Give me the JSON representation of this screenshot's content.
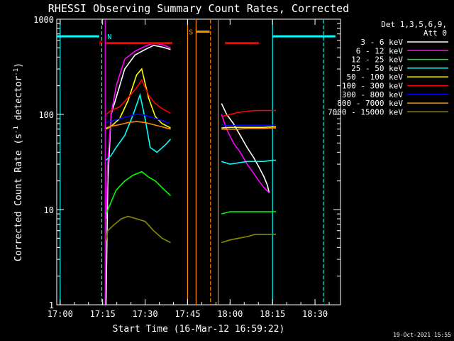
{
  "chart_data": {
    "type": "line",
    "title": "RHESSI Observing Summary Count Rates, Corrected",
    "xlabel": "Start Time (16-Mar-12 16:59:22)",
    "ylabel": "Corrected Count Rate (s",
    "ylabel_sup1": "-1",
    "ylabel_mid": " detector",
    "ylabel_sup2": "-1",
    "ylabel_end": ")",
    "yscale": "log",
    "ylim": [
      1,
      1000
    ],
    "xlim_minutes": [
      16.98,
      18.65
    ],
    "x_ticks": [
      {
        "label": "17:00",
        "min": 17.0
      },
      {
        "label": "17:15",
        "min": 17.25
      },
      {
        "label": "17:30",
        "min": 17.5
      },
      {
        "label": "17:45",
        "min": 17.75
      },
      {
        "label": "18:00",
        "min": 18.0
      },
      {
        "label": "18:15",
        "min": 18.25
      },
      {
        "label": "18:30",
        "min": 18.5
      }
    ],
    "y_ticks": [
      {
        "label": "1000",
        "value": 1000
      },
      {
        "label": "100",
        "value": 100
      },
      {
        "label": "10",
        "value": 10
      },
      {
        "label": "1",
        "value": 1
      }
    ],
    "legend_header": [
      "Det 1,3,5,6,9,",
      "Att 0"
    ],
    "series": [
      {
        "name": "3 - 6 keV",
        "color": "#ffffff",
        "segments": [
          [
            [
              17.27,
              1
            ],
            [
              17.28,
              18
            ],
            [
              17.3,
              100
            ],
            [
              17.33,
              150
            ],
            [
              17.38,
              300
            ],
            [
              17.44,
              420
            ],
            [
              17.5,
              480
            ],
            [
              17.55,
              530
            ],
            [
              17.6,
              510
            ],
            [
              17.65,
              480
            ]
          ],
          [
            [
              17.95,
              130
            ],
            [
              17.98,
              100
            ],
            [
              18.02,
              80
            ],
            [
              18.06,
              60
            ],
            [
              18.1,
              45
            ],
            [
              18.14,
              35
            ],
            [
              18.17,
              28
            ],
            [
              18.2,
              22
            ],
            [
              18.22,
              18
            ],
            [
              18.23,
              15
            ]
          ]
        ]
      },
      {
        "name": "6 - 12 keV",
        "color": "#ff00ff",
        "segments": [
          [
            [
              17.27,
              8
            ],
            [
              17.28,
              30
            ],
            [
              17.3,
              100
            ],
            [
              17.33,
              200
            ],
            [
              17.38,
              380
            ],
            [
              17.44,
              460
            ],
            [
              17.5,
              520
            ],
            [
              17.55,
              560
            ],
            [
              17.6,
              540
            ],
            [
              17.65,
              500
            ]
          ],
          [
            [
              17.95,
              100
            ],
            [
              17.98,
              70
            ],
            [
              18.02,
              50
            ],
            [
              18.06,
              40
            ],
            [
              18.1,
              30
            ],
            [
              18.14,
              24
            ],
            [
              18.17,
              20
            ],
            [
              18.2,
              17
            ],
            [
              18.23,
              15
            ]
          ]
        ]
      },
      {
        "name": "12 - 25 keV",
        "color": "#00ff00",
        "segments": [
          [
            [
              17.27,
              9
            ],
            [
              17.3,
              12
            ],
            [
              17.33,
              16
            ],
            [
              17.38,
              20
            ],
            [
              17.43,
              23
            ],
            [
              17.48,
              25
            ],
            [
              17.52,
              22
            ],
            [
              17.56,
              20
            ],
            [
              17.6,
              17
            ],
            [
              17.65,
              14
            ]
          ],
          [
            [
              17.95,
              9
            ],
            [
              18.0,
              9.5
            ],
            [
              18.05,
              9.5
            ],
            [
              18.1,
              9.5
            ],
            [
              18.15,
              9.5
            ],
            [
              18.2,
              9.5
            ],
            [
              18.25,
              9.5
            ],
            [
              18.27,
              9.5
            ]
          ]
        ]
      },
      {
        "name": "25 - 50 keV",
        "color": "#00ffff",
        "segments": [
          [
            [
              17.27,
              33
            ],
            [
              17.3,
              37
            ],
            [
              17.33,
              45
            ],
            [
              17.38,
              60
            ],
            [
              17.43,
              100
            ],
            [
              17.47,
              160
            ],
            [
              17.5,
              90
            ],
            [
              17.53,
              45
            ],
            [
              17.57,
              40
            ],
            [
              17.62,
              48
            ],
            [
              17.65,
              55
            ]
          ],
          [
            [
              17.95,
              32
            ],
            [
              18.0,
              30
            ],
            [
              18.05,
              31
            ],
            [
              18.1,
              32
            ],
            [
              18.15,
              32
            ],
            [
              18.2,
              32
            ],
            [
              18.25,
              33
            ],
            [
              18.27,
              33
            ]
          ]
        ]
      },
      {
        "name": "50 - 100 keV",
        "color": "#ffff00",
        "segments": [
          [
            [
              17.27,
              70
            ],
            [
              17.3,
              75
            ],
            [
              17.35,
              90
            ],
            [
              17.4,
              140
            ],
            [
              17.45,
              260
            ],
            [
              17.48,
              300
            ],
            [
              17.52,
              150
            ],
            [
              17.56,
              95
            ],
            [
              17.6,
              80
            ],
            [
              17.65,
              72
            ]
          ],
          [
            [
              17.95,
              72
            ],
            [
              18.0,
              73
            ],
            [
              18.05,
              73
            ],
            [
              18.1,
              73
            ],
            [
              18.15,
              73
            ],
            [
              18.2,
              73
            ],
            [
              18.25,
              74
            ],
            [
              18.27,
              74
            ]
          ]
        ]
      },
      {
        "name": "100 - 300 keV",
        "color": "#ff0000",
        "segments": [
          [
            [
              17.27,
              100
            ],
            [
              17.3,
              110
            ],
            [
              17.35,
              120
            ],
            [
              17.4,
              150
            ],
            [
              17.45,
              190
            ],
            [
              17.48,
              230
            ],
            [
              17.52,
              160
            ],
            [
              17.56,
              130
            ],
            [
              17.6,
              115
            ],
            [
              17.65,
              103
            ]
          ],
          [
            [
              17.95,
              95
            ],
            [
              18.0,
              100
            ],
            [
              18.05,
              105
            ],
            [
              18.1,
              108
            ],
            [
              18.15,
              110
            ],
            [
              18.2,
              110
            ],
            [
              18.25,
              110
            ],
            [
              18.27,
              110
            ]
          ]
        ]
      },
      {
        "name": "300 - 800 keV",
        "color": "#0000ff",
        "segments": [
          [
            [
              17.27,
              82
            ],
            [
              17.3,
              85
            ],
            [
              17.35,
              90
            ],
            [
              17.4,
              95
            ],
            [
              17.45,
              100
            ],
            [
              17.5,
              98
            ],
            [
              17.55,
              92
            ],
            [
              17.6,
              86
            ],
            [
              17.65,
              80
            ]
          ],
          [
            [
              17.95,
              78
            ],
            [
              18.0,
              76
            ],
            [
              18.05,
              77
            ],
            [
              18.1,
              77
            ],
            [
              18.15,
              77
            ],
            [
              18.2,
              77
            ],
            [
              18.25,
              77
            ],
            [
              18.27,
              78
            ]
          ]
        ]
      },
      {
        "name": "800 - 7000 keV",
        "color": "#ff8c00",
        "segments": [
          [
            [
              17.27,
              72
            ],
            [
              17.3,
              75
            ],
            [
              17.35,
              78
            ],
            [
              17.4,
              82
            ],
            [
              17.45,
              84
            ],
            [
              17.5,
              82
            ],
            [
              17.55,
              78
            ],
            [
              17.6,
              74
            ],
            [
              17.65,
              70
            ]
          ],
          [
            [
              17.95,
              70
            ],
            [
              18.0,
              70
            ],
            [
              18.05,
              70
            ],
            [
              18.1,
              71
            ],
            [
              18.15,
              71
            ],
            [
              18.2,
              71
            ],
            [
              18.25,
              72
            ],
            [
              18.27,
              72
            ]
          ]
        ]
      },
      {
        "name": "7000 - 15000 keV",
        "color": "#8b8b00",
        "segments": [
          [
            [
              17.27,
              4.5
            ],
            [
              17.28,
              6
            ],
            [
              17.32,
              7
            ],
            [
              17.36,
              8
            ],
            [
              17.4,
              8.5
            ],
            [
              17.45,
              8
            ],
            [
              17.5,
              7.5
            ],
            [
              17.55,
              6
            ],
            [
              17.6,
              5
            ],
            [
              17.65,
              4.5
            ]
          ],
          [
            [
              17.95,
              4.5
            ],
            [
              18.0,
              4.8
            ],
            [
              18.05,
              5
            ],
            [
              18.1,
              5.2
            ],
            [
              18.15,
              5.5
            ],
            [
              18.2,
              5.5
            ],
            [
              18.25,
              5.5
            ],
            [
              18.27,
              5.5
            ]
          ]
        ]
      }
    ],
    "flag_bars": [
      {
        "label": "N",
        "color": "#00ffff",
        "y": 660,
        "segments": [
          [
            16.98,
            17.23
          ],
          [
            18.25,
            18.62
          ]
        ]
      },
      {
        "label": "S",
        "color": "#ff8c00",
        "y": 740,
        "segments": [
          [
            17.8,
            17.88
          ]
        ]
      },
      {
        "label": "F",
        "color": "#ff0000",
        "y": 560,
        "segments": [
          [
            17.27,
            17.66
          ],
          [
            17.97,
            18.17
          ]
        ]
      }
    ],
    "flag_label_positions": [
      {
        "text": "N",
        "color": "#00ffff",
        "x": 17.29,
        "y": 660
      },
      {
        "text": "S",
        "color": "#ff8c00",
        "x": 17.77,
        "y": 740
      },
      {
        "text": "F",
        "color": "#ff0000",
        "x": 17.24,
        "y": 560
      }
    ],
    "vlines": [
      {
        "x": 17.0,
        "color": "#00ffff",
        "style": "solid"
      },
      {
        "x": 17.245,
        "color": "#00ffff",
        "style": "dashed"
      },
      {
        "x": 17.265,
        "color": "#ff00ff",
        "style": "solid"
      },
      {
        "x": 17.75,
        "color": "#ff8c00",
        "style": "solid"
      },
      {
        "x": 17.8,
        "color": "#ff8c00",
        "style": "solid"
      },
      {
        "x": 17.885,
        "color": "#ff8c00",
        "style": "dashed"
      },
      {
        "x": 17.93,
        "color": "#ff8c00",
        "style": "solid"
      },
      {
        "x": 18.25,
        "color": "#00ffff",
        "style": "solid"
      },
      {
        "x": 18.55,
        "color": "#00ffff",
        "style": "dashed"
      }
    ]
  },
  "footer_timestamp": "19-Oct-2021 15:55"
}
